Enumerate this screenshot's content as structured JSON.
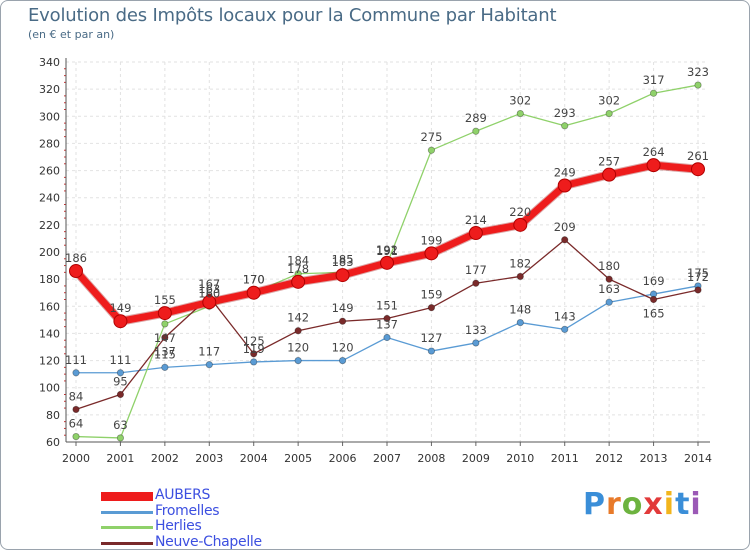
{
  "title": "Evolution des Impôts locaux pour la Commune par Habitant",
  "subtitle": "(en € et par an)",
  "logo": {
    "letters": [
      "P",
      "r",
      "o",
      "x",
      "i",
      "t",
      "i"
    ],
    "colors": [
      "#3a8ed8",
      "#e87a2a",
      "#6db33f",
      "#e23a3a",
      "#f2b51c",
      "#3a8ed8",
      "#9b59b6"
    ]
  },
  "chart_data": {
    "type": "line",
    "title": "Evolution des Impôts locaux pour la Commune par Habitant",
    "subtitle": "(en € et par an)",
    "x": [
      2000,
      2001,
      2002,
      2003,
      2004,
      2005,
      2006,
      2007,
      2008,
      2009,
      2010,
      2011,
      2012,
      2013,
      2014
    ],
    "ylim": [
      60,
      340
    ],
    "yticks": [
      60,
      80,
      100,
      120,
      140,
      160,
      180,
      200,
      220,
      240,
      260,
      280,
      300,
      320,
      340
    ],
    "grid": true,
    "series": [
      {
        "name": "AUBERS",
        "color": "#ee1c1c",
        "values": [
          186,
          149,
          155,
          163,
          170,
          178,
          183,
          192,
          199,
          214,
          220,
          249,
          257,
          264,
          261
        ]
      },
      {
        "name": "Fromelles",
        "color": "#5a9bd4",
        "values": [
          111,
          111,
          115,
          117,
          119,
          120,
          120,
          137,
          127,
          133,
          148,
          143,
          163,
          169,
          175
        ]
      },
      {
        "name": "Herlies",
        "color": "#8fd16a",
        "values": [
          64,
          63,
          147,
          160,
          170,
          184,
          185,
          191,
          275,
          289,
          302,
          293,
          302,
          317,
          323
        ]
      },
      {
        "name": "Neuve-Chapelle",
        "color": "#7a2a2a",
        "values": [
          84,
          95,
          137,
          167,
          125,
          142,
          149,
          151,
          159,
          177,
          182,
          209,
          180,
          165,
          172
        ]
      }
    ],
    "legend_position": "bottom-left"
  }
}
